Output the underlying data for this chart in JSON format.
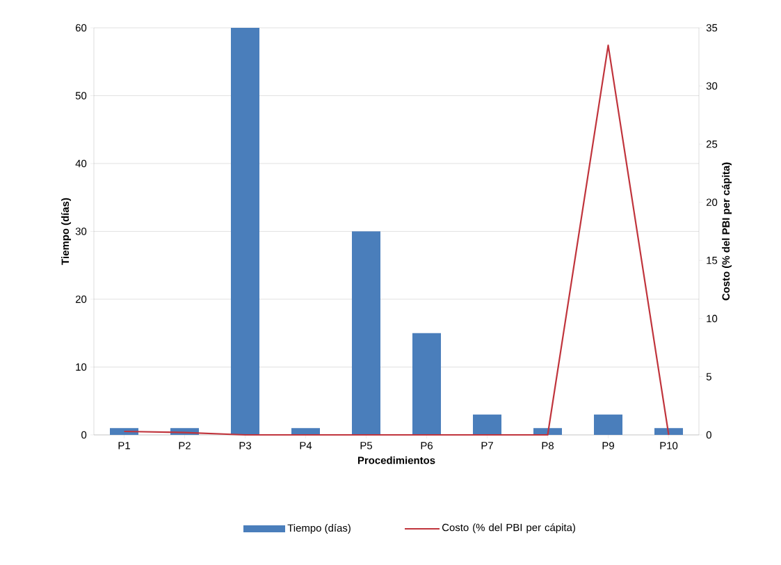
{
  "chart_data": {
    "type": "bar",
    "xlabel": "Procedimientos",
    "ylabel": "Tiempo (días)",
    "y2label": "Costo (% del PBI per cápita)",
    "categories": [
      "P1",
      "P2",
      "P3",
      "P4",
      "P5",
      "P6",
      "P7",
      "P8",
      "P9",
      "P10"
    ],
    "series": [
      {
        "name": "Tiempo (días)",
        "color": "#4a7ebb",
        "values": [
          1,
          1,
          60,
          1,
          30,
          15,
          3,
          1,
          3,
          1
        ]
      },
      {
        "name": "Costo (% del PBI per cápita)",
        "type": "line",
        "axis": "y2",
        "color": "#c0343c",
        "values": [
          0.3,
          0.2,
          0,
          0,
          0,
          0,
          0,
          0,
          33.5,
          0
        ]
      }
    ],
    "ylim": [
      0,
      60
    ],
    "yticks": [
      0,
      10,
      20,
      30,
      40,
      50,
      60
    ],
    "y2lim": [
      0,
      35
    ],
    "y2ticks": [
      0,
      5,
      10,
      15,
      20,
      25,
      30,
      35
    ],
    "grid": "y",
    "legend": "bottom",
    "marker": "none",
    "line_style": "solid"
  }
}
